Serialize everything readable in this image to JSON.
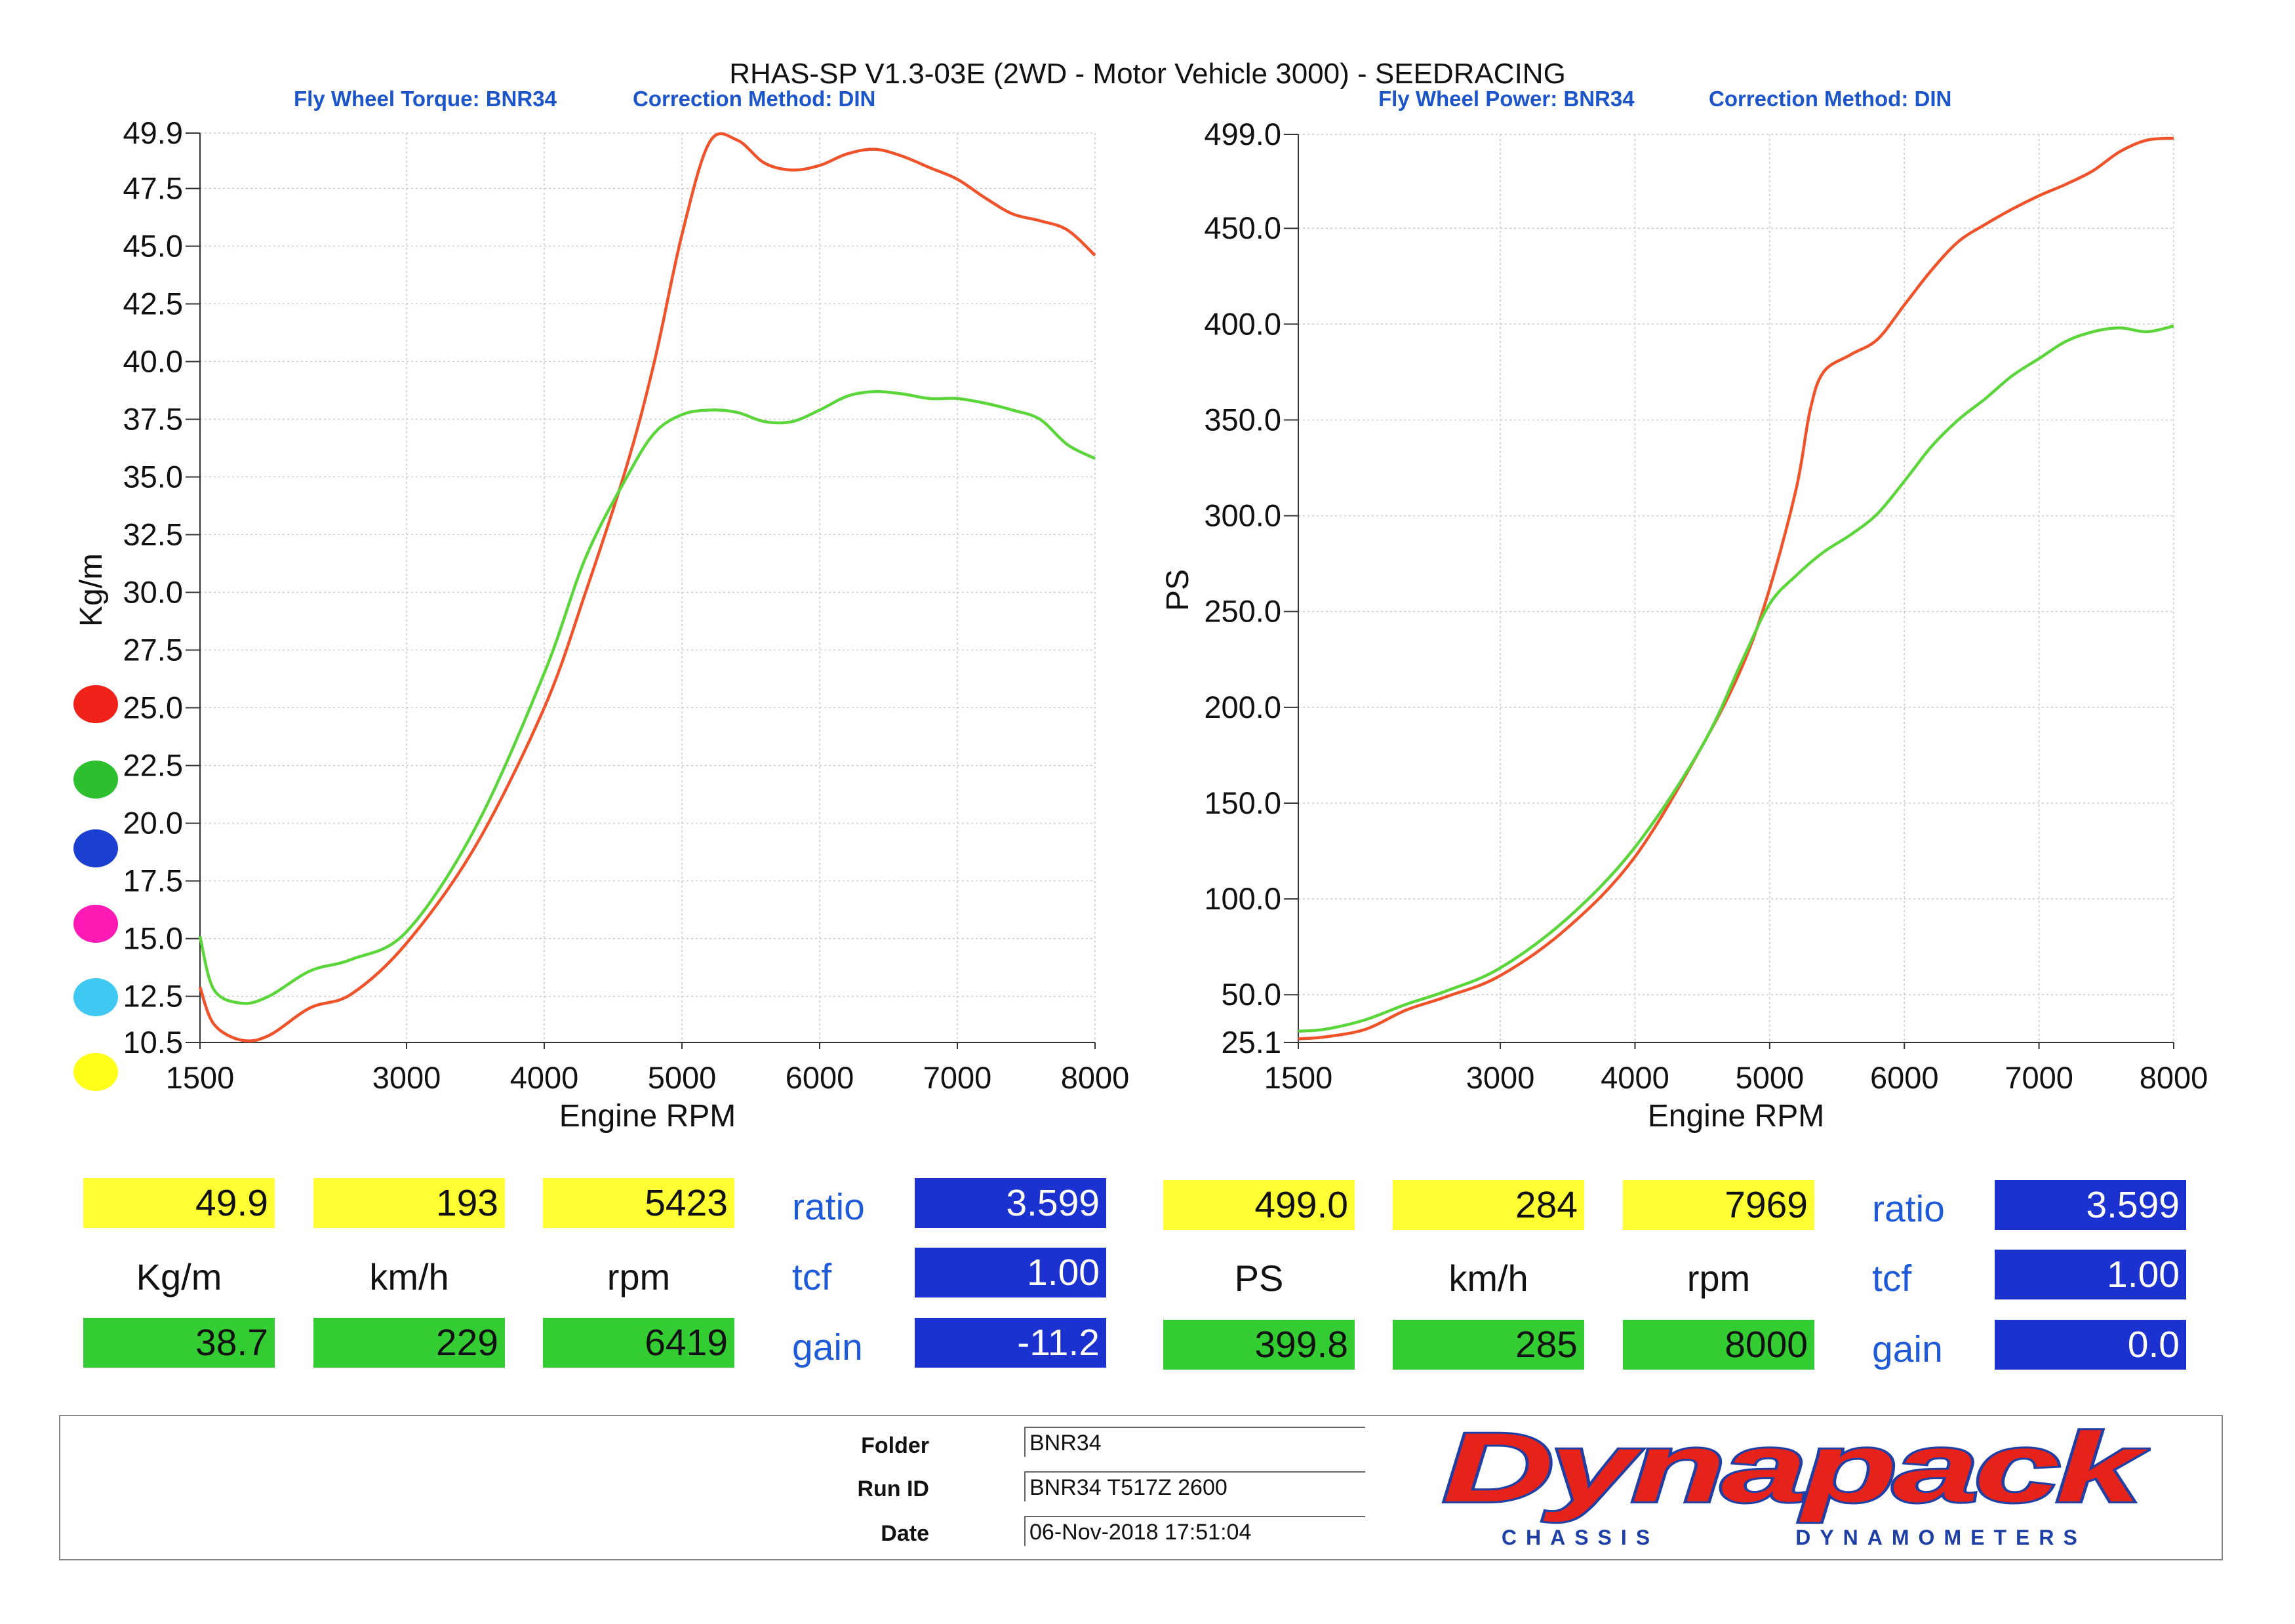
{
  "header": {
    "title": "RHAS-SP V1.3-03E  (2WD - Motor Vehicle 3000) - SEEDRACING",
    "torque_label": "Fly Wheel Torque: BNR34",
    "torque_correction": "Correction Method: DIN",
    "power_label": "Fly Wheel Power: BNR34",
    "power_correction": "Correction Method: DIN"
  },
  "colors": {
    "run1": "#f0522a",
    "run2": "#5bd63a",
    "swatches": [
      "#f0221a",
      "#2ebf2e",
      "#1b3fd0",
      "#ff1ab5",
      "#3fc9f2",
      "#ffff1a"
    ]
  },
  "chart_data": [
    {
      "type": "line",
      "title": "Fly Wheel Torque: BNR34",
      "xlabel": "Engine RPM",
      "ylabel": "Kg/m",
      "xlim": [
        1500,
        8000
      ],
      "ylim": [
        10.5,
        49.9
      ],
      "xticks": [
        "1500",
        "3000",
        "4000",
        "5000",
        "6000",
        "7000",
        "8000"
      ],
      "yticks": [
        "10.5",
        "12.5",
        "15.0",
        "17.5",
        "20.0",
        "22.5",
        "25.0",
        "27.5",
        "30.0",
        "32.5",
        "35.0",
        "37.5",
        "40.0",
        "42.5",
        "45.0",
        "47.5",
        "49.9"
      ],
      "grid": true,
      "series": [
        {
          "color": "#f0522a",
          "x": [
            1500,
            1600,
            1800,
            2000,
            2300,
            2600,
            3000,
            3500,
            4000,
            4300,
            4600,
            4800,
            5000,
            5200,
            5400,
            5600,
            5800,
            6000,
            6200,
            6400,
            6600,
            6800,
            7000,
            7200,
            7400,
            7600,
            7800,
            8000
          ],
          "y": [
            12.9,
            11.3,
            10.6,
            10.8,
            12.0,
            12.6,
            14.8,
            19.0,
            25.0,
            30.0,
            35.5,
            40.0,
            45.5,
            49.5,
            49.6,
            48.6,
            48.3,
            48.5,
            49.0,
            49.2,
            48.9,
            48.4,
            47.9,
            47.1,
            46.4,
            46.1,
            45.7,
            44.6
          ]
        },
        {
          "color": "#5bd63a",
          "x": [
            1500,
            1600,
            1800,
            2000,
            2300,
            2600,
            3000,
            3500,
            4000,
            4300,
            4600,
            4800,
            5000,
            5200,
            5400,
            5600,
            5800,
            6000,
            6200,
            6400,
            6600,
            6800,
            7000,
            7200,
            7400,
            7600,
            7800,
            8000
          ],
          "y": [
            15.1,
            12.8,
            12.2,
            12.5,
            13.6,
            14.1,
            15.3,
            19.8,
            26.5,
            31.5,
            35.0,
            36.9,
            37.7,
            37.9,
            37.8,
            37.4,
            37.4,
            37.9,
            38.5,
            38.7,
            38.6,
            38.4,
            38.4,
            38.2,
            37.9,
            37.5,
            36.4,
            35.8
          ]
        }
      ]
    },
    {
      "type": "line",
      "title": "Fly Wheel Power: BNR34",
      "xlabel": "Engine RPM",
      "ylabel": "PS",
      "xlim": [
        1500,
        8000
      ],
      "ylim": [
        25.1,
        499.0
      ],
      "xticks": [
        "1500",
        "3000",
        "4000",
        "5000",
        "6000",
        "7000",
        "8000"
      ],
      "yticks": [
        "25.1",
        "50.0",
        "100.0",
        "150.0",
        "200.0",
        "250.0",
        "300.0",
        "350.0",
        "400.0",
        "450.0",
        "499.0"
      ],
      "grid": true,
      "series": [
        {
          "color": "#f0522a",
          "x": [
            1500,
            1700,
            2000,
            2300,
            2600,
            3000,
            3500,
            4000,
            4500,
            4800,
            5000,
            5200,
            5300,
            5400,
            5600,
            5800,
            6000,
            6200,
            6400,
            6600,
            6800,
            7000,
            7200,
            7400,
            7600,
            7800,
            8000
          ],
          "y": [
            27,
            28,
            32,
            42,
            49,
            60,
            85,
            122,
            180,
            222,
            262,
            315,
            355,
            375,
            384,
            392,
            410,
            428,
            443,
            452,
            460,
            467,
            473,
            480,
            490,
            496,
            497
          ]
        },
        {
          "color": "#5bd63a",
          "x": [
            1500,
            1700,
            2000,
            2300,
            2600,
            3000,
            3500,
            4000,
            4500,
            4800,
            5000,
            5200,
            5400,
            5600,
            5800,
            6000,
            6200,
            6400,
            6600,
            6800,
            7000,
            7200,
            7400,
            7600,
            7800,
            8000
          ],
          "y": [
            31,
            32,
            37,
            45,
            52,
            64,
            90,
            127,
            180,
            225,
            254,
            269,
            281,
            290,
            301,
            318,
            336,
            350,
            361,
            373,
            382,
            391,
            396,
            398,
            396,
            399
          ]
        }
      ]
    }
  ],
  "readouts": {
    "left": {
      "run1": [
        "49.9",
        "193",
        "5423"
      ],
      "units": [
        "Kg/m",
        "km/h",
        "rpm"
      ],
      "run2": [
        "38.7",
        "229",
        "6419"
      ],
      "labels": [
        "ratio",
        "tcf",
        "gain"
      ],
      "params": [
        "3.599",
        "1.00",
        "-11.2"
      ]
    },
    "right": {
      "run1": [
        "499.0",
        "284",
        "7969"
      ],
      "units": [
        "PS",
        "km/h",
        "rpm"
      ],
      "run2": [
        "399.8",
        "285",
        "8000"
      ],
      "labels": [
        "ratio",
        "tcf",
        "gain"
      ],
      "params": [
        "3.599",
        "1.00",
        "0.0"
      ]
    }
  },
  "footer": {
    "folder_label": "Folder",
    "folder_value": "BNR34",
    "runid_label": "Run ID",
    "runid_value": "BNR34 T517Z 2600",
    "date_label": "Date",
    "date_value": "06-Nov-2018  17:51:04",
    "logo_text": "Dynapack",
    "logo_sub1": "CHASSIS",
    "logo_sub2": "DYNAMOMETERS"
  }
}
